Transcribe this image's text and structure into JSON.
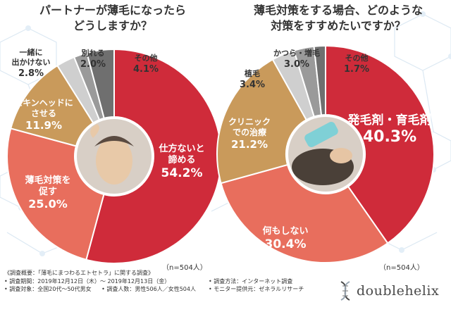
{
  "titles": {
    "left_line1": "パートナーが薄毛になったら",
    "left_line2": "どうしますか？",
    "right_line1": "薄毛対策をする場合、どのような",
    "right_line2": "対策をすすめたいですか？"
  },
  "n_labels": {
    "left": "（n=504人）",
    "right": "（n=504人）"
  },
  "colors": {
    "dark_red": "#cf2b3a",
    "salmon": "#e86e5d",
    "tan": "#c99a5b",
    "gray_light": "#cfcfcf",
    "gray_mid": "#9a9a9a",
    "gray_dark": "#6f6f6f"
  },
  "chart_data": [
    {
      "type": "pie",
      "title": "パートナーが薄毛になったら どうしますか？",
      "categories": [
        "仕方ないと諦める",
        "薄毛対策を促す",
        "スキンヘッドにさせる",
        "一緒に出かけない",
        "別れる",
        "その他"
      ],
      "values": [
        54.2,
        25.0,
        11.9,
        2.8,
        2.0,
        4.1
      ],
      "label_lines": [
        [
          "仕方ないと",
          "諦める"
        ],
        [
          "薄毛対策を",
          "促す"
        ],
        [
          "スキンヘッドに",
          "させる"
        ],
        [
          "一緒に",
          "出かけない"
        ],
        [
          "別れる"
        ],
        [
          "その他"
        ]
      ],
      "value_labels": [
        "54.2%",
        "25.0%",
        "11.9%",
        "2.8%",
        "2.0%",
        "4.1%"
      ],
      "colors": [
        "#cf2b3a",
        "#e86e5d",
        "#c99a5b",
        "#cfcfcf",
        "#9a9a9a",
        "#6f6f6f"
      ],
      "n": "（n=504人）"
    },
    {
      "type": "pie",
      "title": "薄毛対策をする場合、どのような対策をすすめたいですか？",
      "categories": [
        "発毛剤・育毛剤",
        "何もしない",
        "クリニックでの治療",
        "植毛",
        "かつら・増毛",
        "その他"
      ],
      "values": [
        40.3,
        30.4,
        21.2,
        3.4,
        3.0,
        1.7
      ],
      "label_lines": [
        [
          "発毛剤・育毛剤"
        ],
        [
          "何もしない"
        ],
        [
          "クリニック",
          "での治療"
        ],
        [
          "植毛"
        ],
        [
          "かつら・増毛"
        ],
        [
          "その他"
        ]
      ],
      "value_labels": [
        "40.3%",
        "30.4%",
        "21.2%",
        "3.4%",
        "3.0%",
        "1.7%"
      ],
      "colors": [
        "#cf2b3a",
        "#e86e5d",
        "#c99a5b",
        "#cfcfcf",
        "#9a9a9a",
        "#6f6f6f"
      ],
      "n": "（n=504人）"
    }
  ],
  "survey": {
    "heading": "《調査概要：「薄毛にまつわるエトセトラ」に関する調査》",
    "period": "• 調査期間：2019年12月12日（木）～ 2019年12月13日（金）",
    "method": "• 調査方法：インターネット調査",
    "target": "• 調査対象：全国20代～50代男女",
    "count": "• 調査人数：男性506人／女性504人",
    "provider": "• モニター提供元：ゼネラルリサーチ"
  },
  "logo": {
    "text": "doublehelix"
  }
}
